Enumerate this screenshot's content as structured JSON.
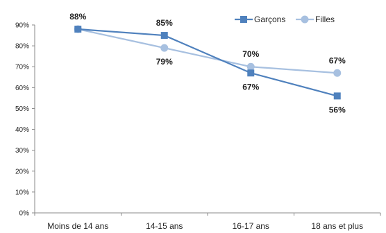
{
  "chart_data": {
    "type": "line",
    "title": "",
    "xlabel": "",
    "ylabel": "",
    "ylim": [
      0,
      90
    ],
    "ytick_step": 10,
    "ytick_format": "percent",
    "grid": false,
    "legend_position": "top-right",
    "categories": [
      "Moins de 14 ans",
      "14-15 ans",
      "16-17 ans",
      "18 ans et plus"
    ],
    "series": [
      {
        "name": "Garçons",
        "values": [
          88,
          85,
          67,
          56
        ],
        "labels": [
          "",
          "85%",
          "67%",
          "56%"
        ],
        "color": "#4f81bd",
        "marker": "square",
        "label_position": [
          "above",
          "above",
          "below",
          "below"
        ]
      },
      {
        "name": "Filles",
        "values": [
          88,
          79,
          70,
          67
        ],
        "labels": [
          "88%",
          "79%",
          "70%",
          "67%"
        ],
        "color": "#a7c0e0",
        "marker": "circle",
        "label_position": [
          "above",
          "below",
          "above",
          "above"
        ]
      }
    ]
  }
}
